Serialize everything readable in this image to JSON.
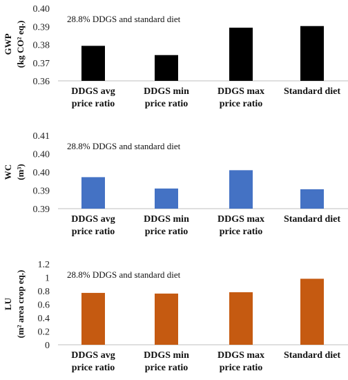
{
  "chart_data": [
    {
      "type": "bar",
      "annotation": "28.8% DDGS and standard diet",
      "ylabel_line1": "GWP",
      "ylabel_line2": "(kg CO² eq.)",
      "categories": [
        [
          "DDGS avg",
          "price ratio"
        ],
        [
          "DDGS min",
          "price ratio"
        ],
        [
          "DDGS max",
          "price ratio"
        ],
        [
          "Standard diet"
        ]
      ],
      "values": [
        0.3793,
        0.3742,
        0.3893,
        0.3902
      ],
      "ylim": [
        0.36,
        0.4
      ],
      "yticks": [
        "0.36",
        "0.37",
        "0.38",
        "0.39",
        "0.40"
      ],
      "color": "#000000"
    },
    {
      "type": "bar",
      "annotation": "28.8% DDGS and standard diet",
      "ylabel_line1": "WC",
      "ylabel_line2": "(m³)",
      "categories": [
        [
          "DDGS avg",
          "price ratio"
        ],
        [
          "DDGS min",
          "price ratio"
        ],
        [
          "DDGS max",
          "price ratio"
        ],
        [
          "Standard diet"
        ]
      ],
      "values": [
        0.3986,
        0.3955,
        0.4005,
        0.3953
      ],
      "ylim": [
        0.39,
        0.41
      ],
      "yticks": [
        "0.39",
        "0.39",
        "0.40",
        "0.40",
        "0.41"
      ],
      "color": "#4472c4"
    },
    {
      "type": "bar",
      "annotation": "28.8% DDGS and standard diet",
      "ylabel_line1": "LU",
      "ylabel_line2": "(m² area crop eq.)",
      "categories": [
        [
          "DDGS avg",
          "price ratio"
        ],
        [
          "DDGS min",
          "price ratio"
        ],
        [
          "DDGS max",
          "price ratio"
        ],
        [
          "Standard diet"
        ]
      ],
      "values": [
        0.77,
        0.76,
        0.78,
        0.98
      ],
      "ylim": [
        0,
        1.2
      ],
      "yticks": [
        "0",
        "0.2",
        "0.4",
        "0.6",
        "0.8",
        "1",
        "1.2"
      ],
      "color": "#c55a11"
    }
  ]
}
